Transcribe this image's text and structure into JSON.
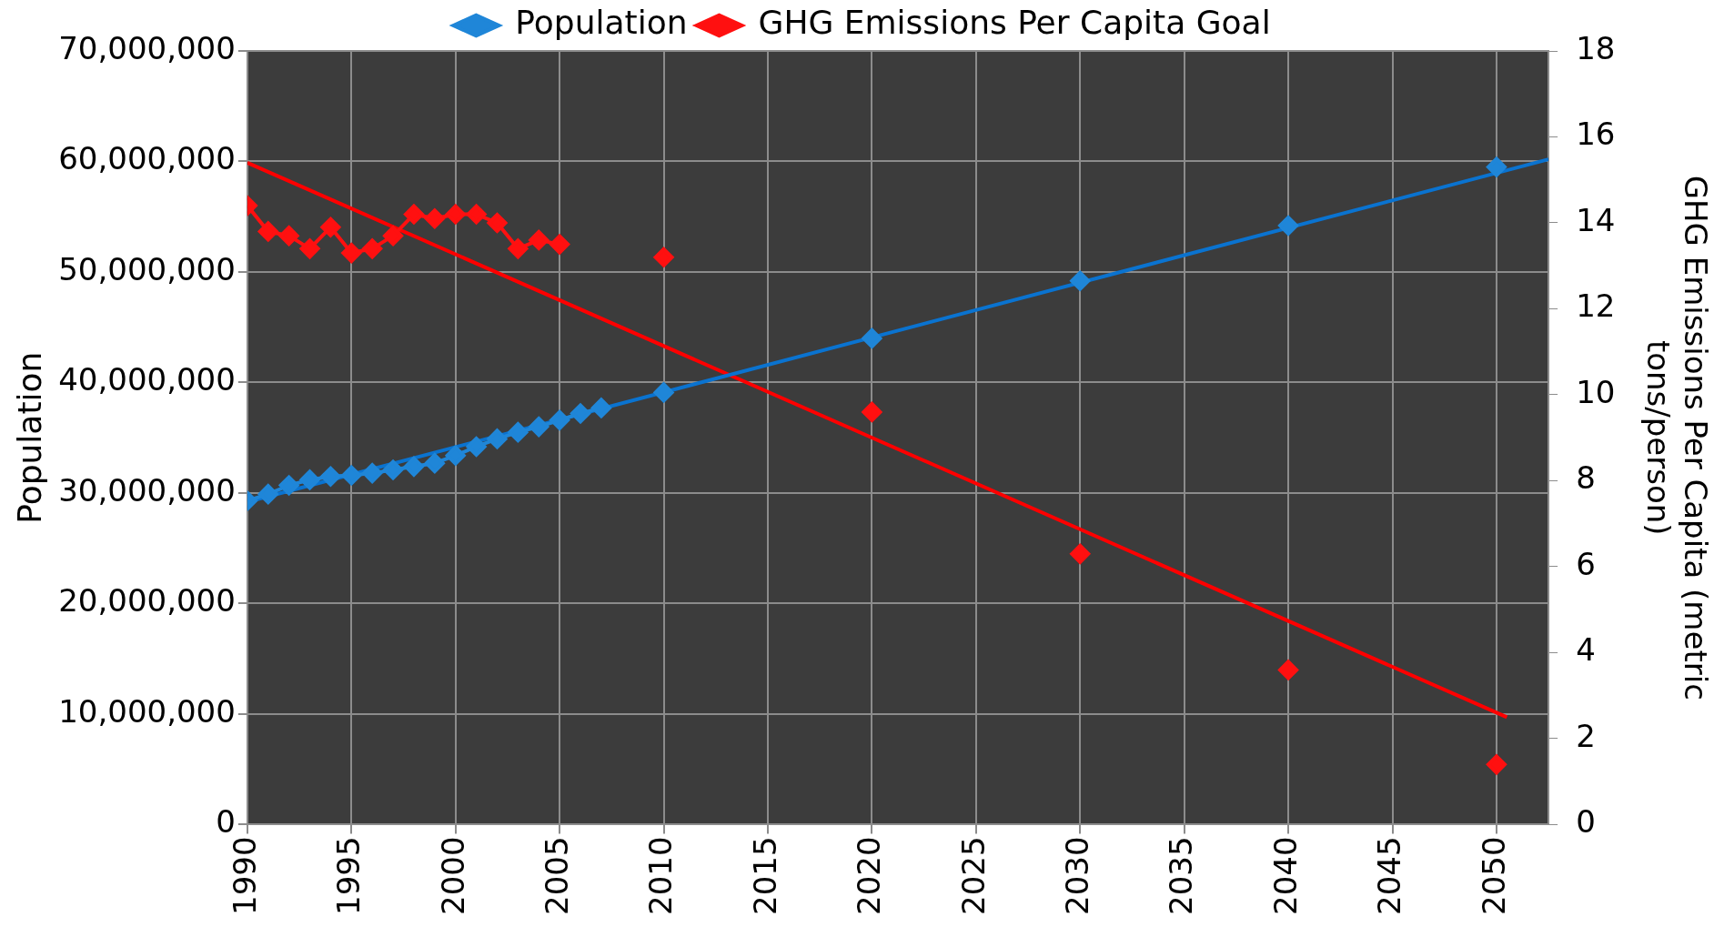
{
  "chart_data": {
    "type": "line",
    "ylabel": "Population",
    "y2label": "GHG Emissions Per Capita (metric tons/person)",
    "x": [
      1990,
      1991,
      1992,
      1993,
      1994,
      1995,
      1996,
      1997,
      1998,
      1999,
      2000,
      2001,
      2002,
      2003,
      2004,
      2005,
      2006,
      2007,
      2008,
      2010,
      2015,
      2020,
      2025,
      2030,
      2035,
      2040,
      2045,
      2050
    ],
    "series": [
      {
        "name": "Population",
        "color": "#1f86d8",
        "values": [
          29300000,
          29900000,
          30700000,
          31200000,
          31500000,
          31600000,
          31800000,
          32100000,
          32400000,
          32700000,
          33400000,
          34200000,
          34900000,
          35500000,
          36000000,
          36600000,
          37200000,
          37700000,
          null,
          39100000,
          null,
          44000000,
          null,
          49200000,
          null,
          54200000,
          null,
          59500000
        ]
      },
      {
        "name": "GHG Emissions Per Capita Goal",
        "color": "#ff1010",
        "axis": "y2",
        "values": [
          14.4,
          13.8,
          13.7,
          13.4,
          13.9,
          13.3,
          13.4,
          13.7,
          14.2,
          14.1,
          14.2,
          14.2,
          14.0,
          13.4,
          13.6,
          13.5,
          null,
          null,
          null,
          13.2,
          null,
          9.6,
          null,
          6.3,
          null,
          3.6,
          null,
          1.4
        ]
      },
      {
        "type": "line",
        "color": "#0a73d0",
        "marker": "none",
        "x": [
          1990,
          2052.5
        ],
        "values": [
          29200000,
          60200000
        ]
      },
      {
        "type": "line",
        "color": "#ff0000",
        "marker": "none",
        "axis": "y2",
        "x": [
          1990,
          2050.5
        ],
        "values": [
          15.4,
          2.5
        ]
      }
    ],
    "xlim": [
      1990,
      2052.5
    ],
    "xticks": [
      1990,
      1995,
      2000,
      2005,
      2010,
      2015,
      2020,
      2025,
      2030,
      2035,
      2040,
      2045,
      2050
    ],
    "ylim": [
      0,
      70000000
    ],
    "yticks": [
      0,
      {
        "value": 10000000,
        "label": "10,000,000"
      },
      {
        "value": 20000000,
        "label": "20,000,000"
      },
      {
        "value": 30000000,
        "label": "30,000,000"
      },
      {
        "value": 40000000,
        "label": "40,000,000"
      },
      {
        "value": 50000000,
        "label": "50,000,000"
      },
      {
        "value": 60000000,
        "label": "60,000,000"
      },
      {
        "value": 70000000,
        "label": "70,000,000"
      }
    ],
    "y2lim": [
      0,
      18
    ],
    "y2ticks": [
      0,
      2,
      4,
      6,
      8,
      10,
      12,
      14,
      16,
      18
    ],
    "grid": true,
    "legend": "top",
    "marker": "diamond",
    "line_style": "solid"
  }
}
